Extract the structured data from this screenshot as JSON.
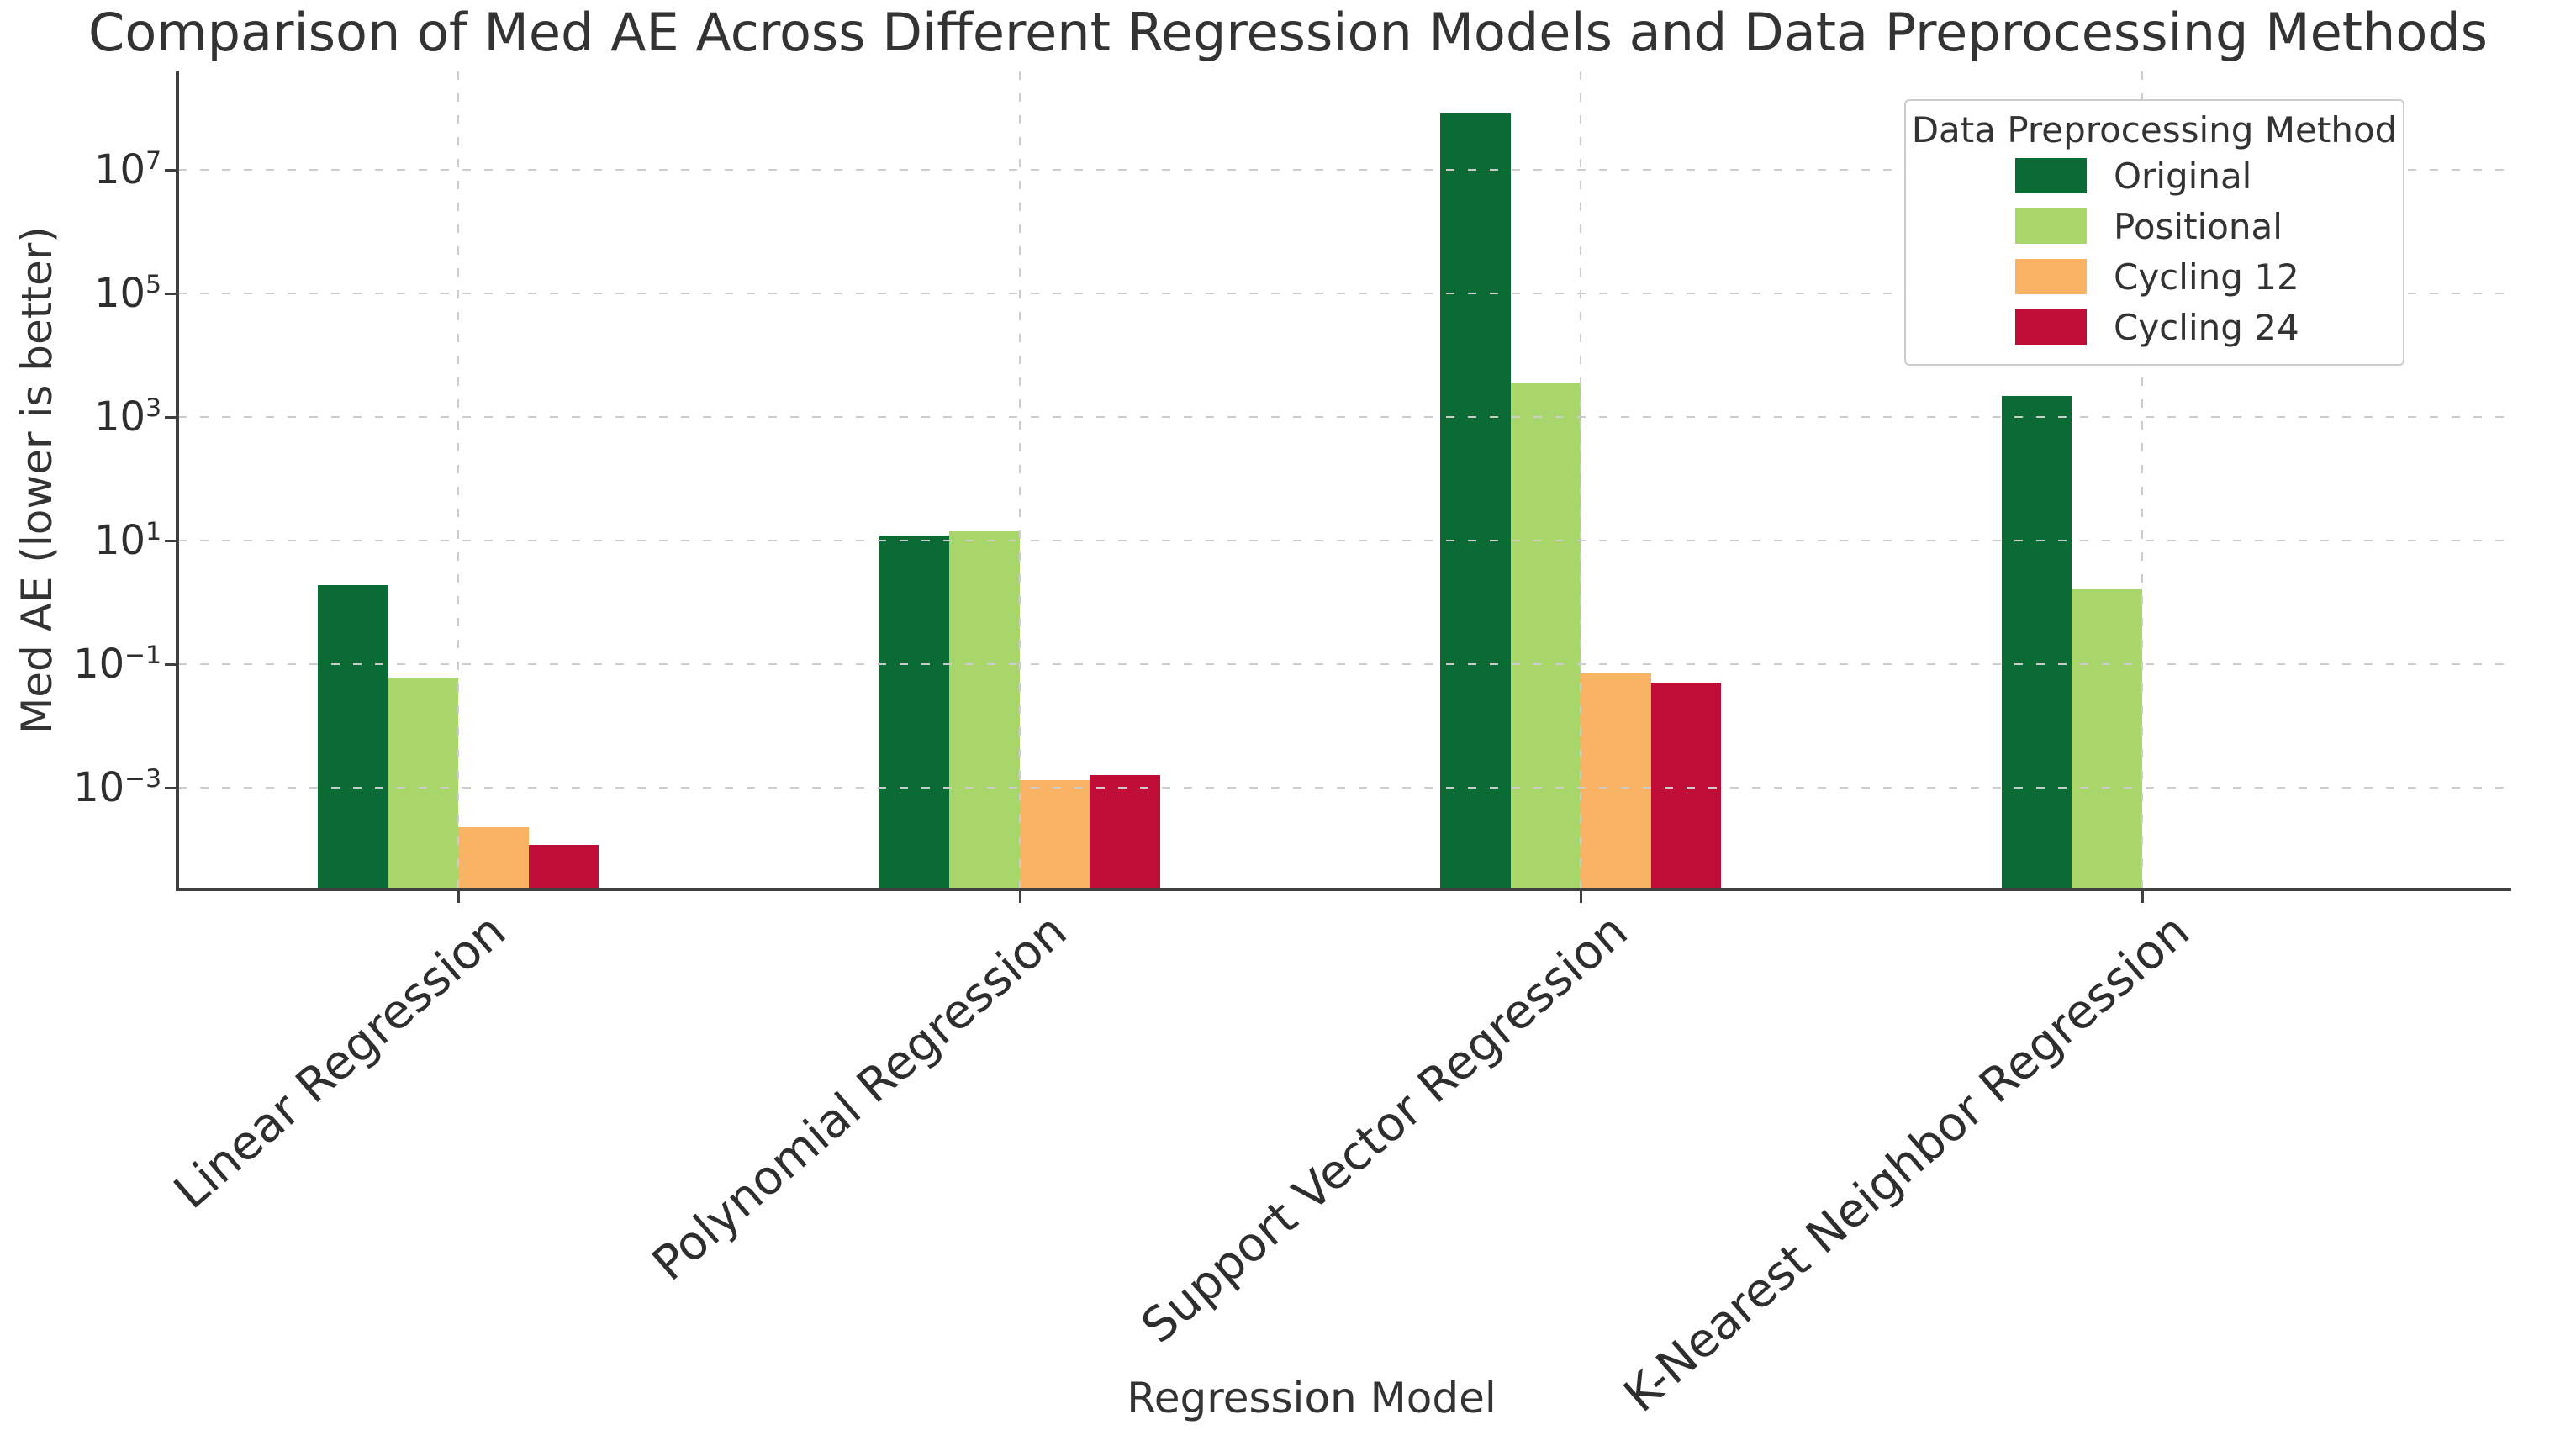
{
  "chart_data": {
    "type": "bar",
    "scale": "log-y",
    "title": "Comparison of Med AE Across Different Regression Models and Data Preprocessing Methods",
    "xlabel": "Regression Model",
    "ylabel": "Med AE (lower is better)",
    "legend_title": "Data Preprocessing Method",
    "legend_position": "upper right",
    "grid": true,
    "categories": [
      "Linear Regression",
      "Polynomial Regression",
      "Support Vector Regression",
      "K-Nearest Neighbor Regression"
    ],
    "series": [
      {
        "name": "Original",
        "color": "#0a6b35",
        "values": [
          1.9,
          12,
          80000000,
          2200
        ]
      },
      {
        "name": "Positional",
        "color": "#a8d66a",
        "values": [
          0.06,
          14,
          3500,
          1.6
        ]
      },
      {
        "name": "Cycling 12",
        "color": "#fab264",
        "values": [
          0.00023,
          0.0013,
          0.07,
          null
        ]
      },
      {
        "name": "Cycling 24",
        "color": "#bf0d38",
        "values": [
          0.00012,
          0.0016,
          0.05,
          null
        ]
      }
    ],
    "y_tick_exponents": [
      7,
      5,
      3,
      1,
      -1,
      -3
    ],
    "ylim": [
      2.2e-05,
      390000000
    ]
  }
}
